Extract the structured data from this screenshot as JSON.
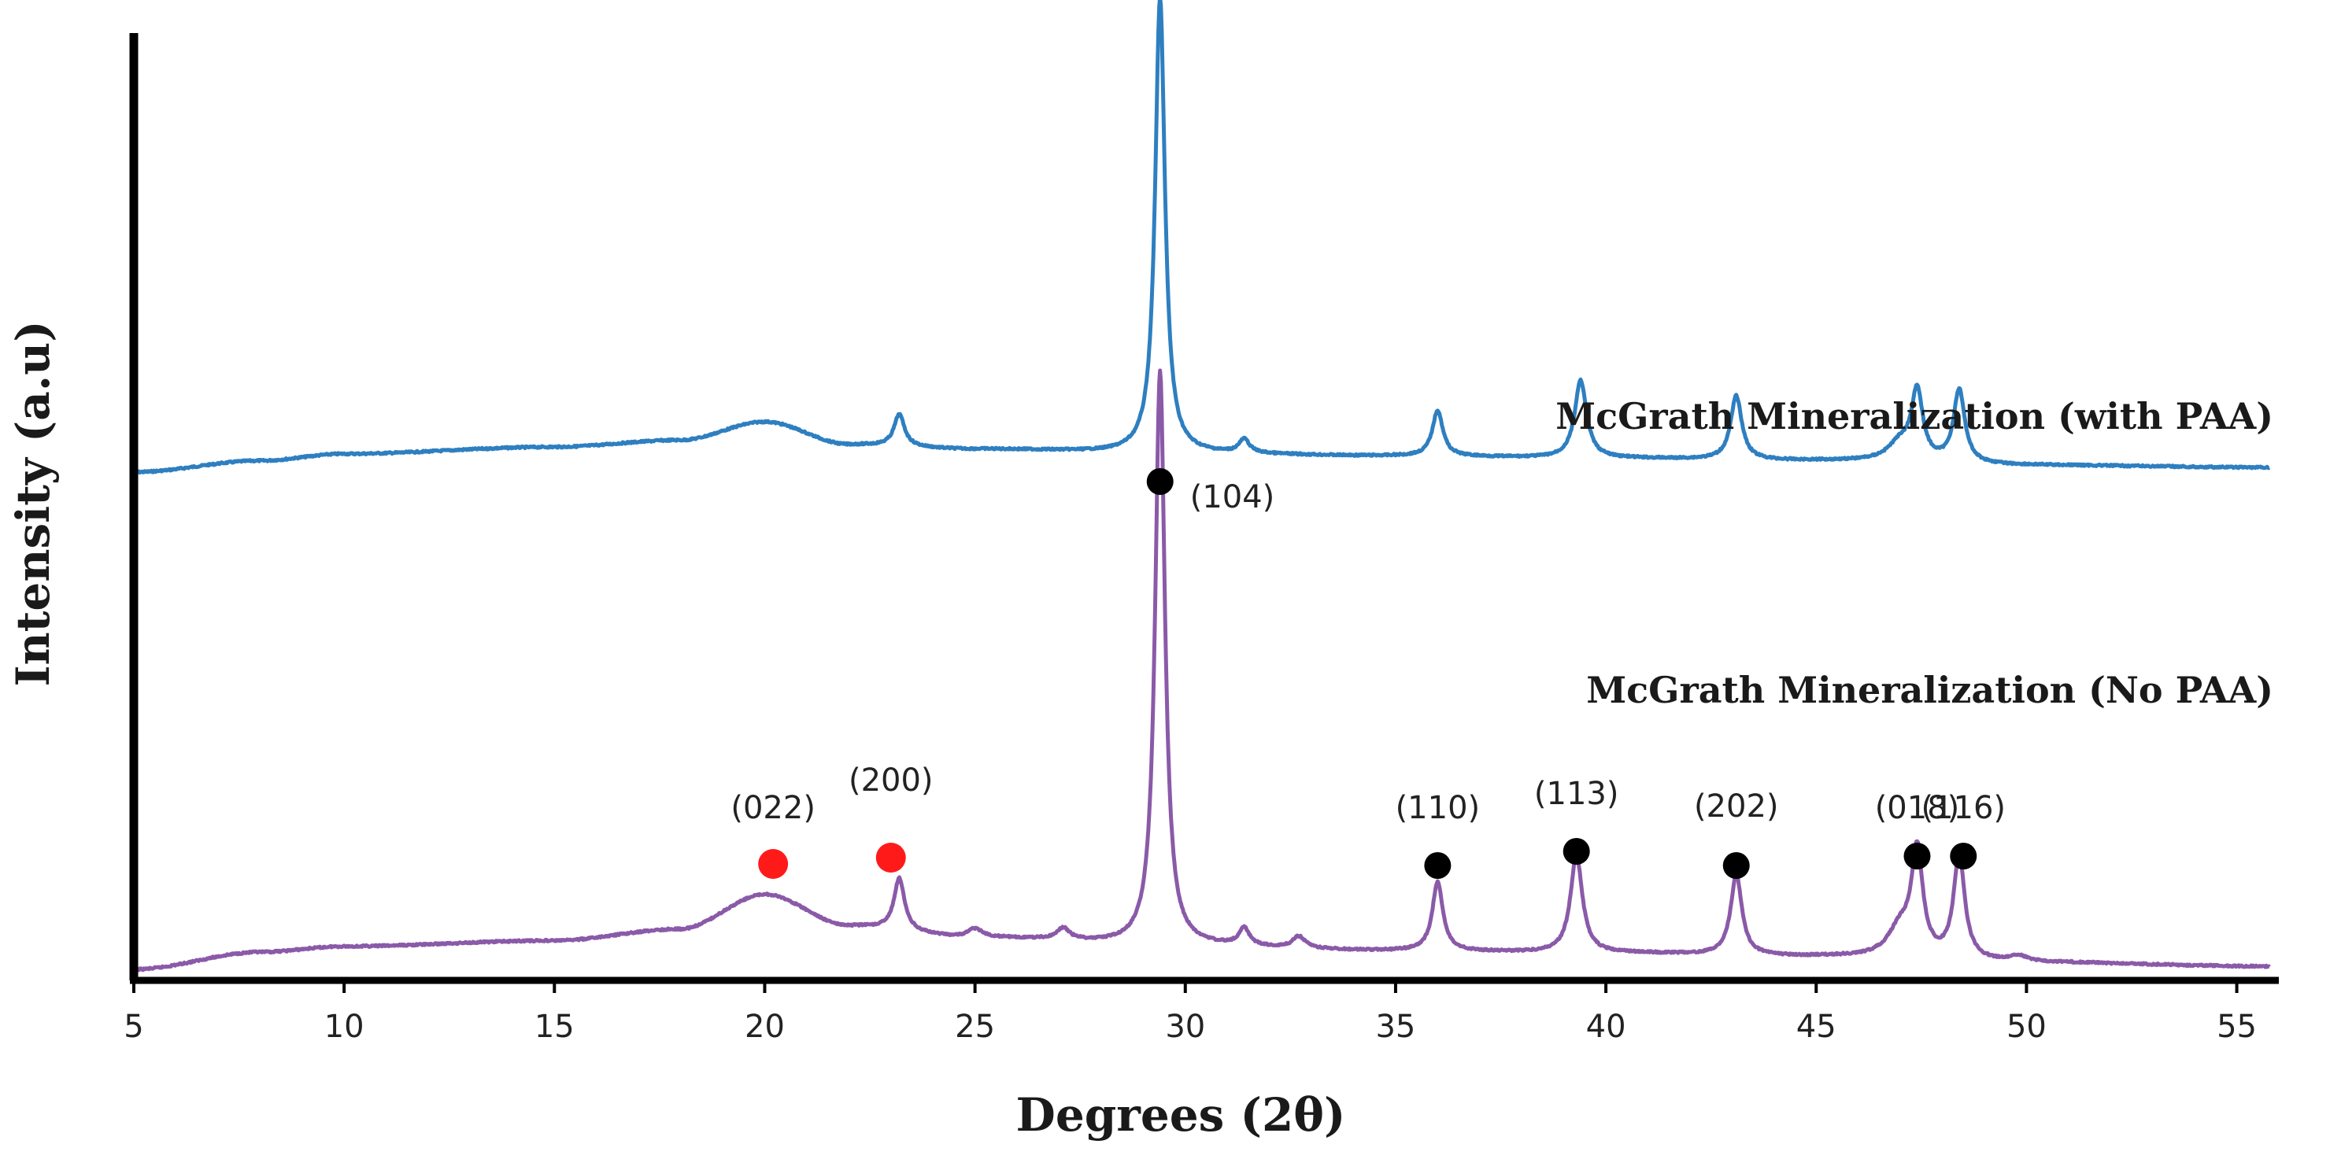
{
  "chart_data": {
    "type": "line",
    "xlabel": "Degrees (2θ)",
    "ylabel": "Intensity (a.u)",
    "xlim": [
      5,
      56
    ],
    "xticks": [
      5,
      10,
      15,
      20,
      25,
      30,
      35,
      40,
      45,
      50,
      55
    ],
    "grid": false,
    "y_tick_labels": false,
    "series": [
      {
        "name": "McGrath Mineralization (with PAA)",
        "color": "#2e7fc0",
        "baseline": [
          [
            5,
            0.0
          ],
          [
            8,
            0.025
          ],
          [
            10,
            0.04
          ],
          [
            15,
            0.055
          ],
          [
            18,
            0.07
          ],
          [
            20,
            0.11
          ],
          [
            22,
            0.06
          ],
          [
            25,
            0.05
          ],
          [
            30,
            0.04
          ],
          [
            35,
            0.035
          ],
          [
            40,
            0.03
          ],
          [
            45,
            0.025
          ],
          [
            50,
            0.015
          ],
          [
            55.8,
            0.01
          ]
        ],
        "peaks": [
          {
            "x": 23.2,
            "height": 0.07,
            "width": 0.15
          },
          {
            "x": 29.4,
            "height": 1.0,
            "width": 0.14
          },
          {
            "x": 31.4,
            "height": 0.03,
            "width": 0.15
          },
          {
            "x": 36.0,
            "height": 0.1,
            "width": 0.15
          },
          {
            "x": 39.4,
            "height": 0.17,
            "width": 0.17
          },
          {
            "x": 43.1,
            "height": 0.14,
            "width": 0.16
          },
          {
            "x": 47.0,
            "height": 0.04,
            "width": 0.35
          },
          {
            "x": 47.4,
            "height": 0.15,
            "width": 0.16
          },
          {
            "x": 48.4,
            "height": 0.16,
            "width": 0.16
          }
        ]
      },
      {
        "name": "McGrath Mineralization (No PAA)",
        "color": "#8a5aa8",
        "baseline": [
          [
            5,
            0.0
          ],
          [
            8,
            0.03
          ],
          [
            10,
            0.04
          ],
          [
            15,
            0.05
          ],
          [
            18,
            0.07
          ],
          [
            20,
            0.13
          ],
          [
            22,
            0.075
          ],
          [
            25,
            0.055
          ],
          [
            30,
            0.04
          ],
          [
            35,
            0.032
          ],
          [
            40,
            0.028
          ],
          [
            45,
            0.022
          ],
          [
            50,
            0.012
          ],
          [
            55.8,
            0.005
          ]
        ],
        "peaks": [
          {
            "x": 23.2,
            "height": 0.09,
            "width": 0.15
          },
          {
            "x": 25.0,
            "height": 0.015,
            "width": 0.2
          },
          {
            "x": 27.1,
            "height": 0.02,
            "width": 0.18
          },
          {
            "x": 29.4,
            "height": 1.0,
            "width": 0.14
          },
          {
            "x": 31.4,
            "height": 0.03,
            "width": 0.15
          },
          {
            "x": 32.7,
            "height": 0.02,
            "width": 0.18
          },
          {
            "x": 36.0,
            "height": 0.12,
            "width": 0.15
          },
          {
            "x": 39.3,
            "height": 0.17,
            "width": 0.17
          },
          {
            "x": 43.1,
            "height": 0.14,
            "width": 0.16
          },
          {
            "x": 47.0,
            "height": 0.05,
            "width": 0.35
          },
          {
            "x": 47.4,
            "height": 0.18,
            "width": 0.16
          },
          {
            "x": 48.4,
            "height": 0.18,
            "width": 0.16
          },
          {
            "x": 49.8,
            "height": 0.01,
            "width": 0.25
          }
        ]
      }
    ],
    "annotations": [
      {
        "label": "(022)",
        "x": 20.2,
        "marker_color": "#ff1a1a"
      },
      {
        "label": "(200)",
        "x": 23.0,
        "marker_color": "#ff1a1a"
      },
      {
        "label": "(104)",
        "x": 29.4,
        "marker_color": "#000000"
      },
      {
        "label": "(110)",
        "x": 36.0,
        "marker_color": "#000000"
      },
      {
        "label": "(113)",
        "x": 39.3,
        "marker_color": "#000000"
      },
      {
        "label": "(202)",
        "x": 43.1,
        "marker_color": "#000000"
      },
      {
        "label": "(018)",
        "x": 47.4,
        "marker_color": "#000000"
      },
      {
        "label": "(116)",
        "x": 48.5,
        "marker_color": "#000000"
      }
    ]
  }
}
